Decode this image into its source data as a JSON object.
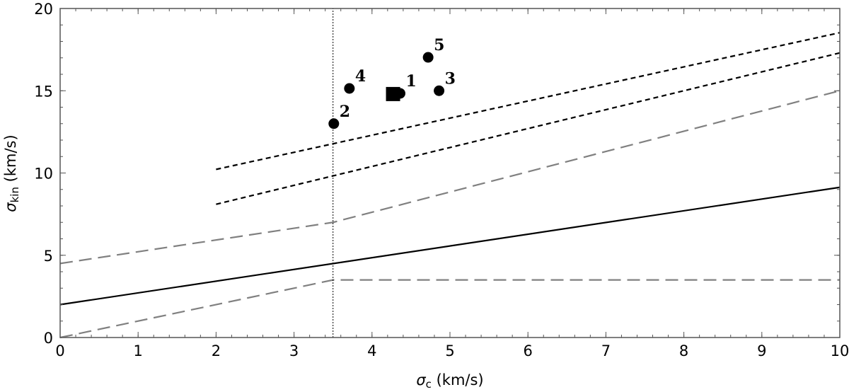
{
  "chart_data": {
    "type": "scatter",
    "xlabel": {
      "symbol": "σ",
      "sub": "c",
      "unit": " (km/s)"
    },
    "ylabel": {
      "symbol": "σ",
      "sub": "kin",
      "unit": " (km/s)"
    },
    "xlim": [
      0,
      10
    ],
    "ylim": [
      0,
      20
    ],
    "xticks": [
      0,
      1,
      2,
      3,
      4,
      5,
      6,
      7,
      8,
      9,
      10
    ],
    "yticks": [
      0,
      5,
      10,
      15,
      20
    ],
    "grid": false,
    "points": [
      {
        "label": "1",
        "x": 4.36,
        "y": 14.84,
        "marker": "circle"
      },
      {
        "label": "2",
        "x": 3.51,
        "y": 13.0,
        "marker": "circle"
      },
      {
        "label": "3",
        "x": 4.86,
        "y": 15.0,
        "marker": "circle"
      },
      {
        "label": "4",
        "x": 3.71,
        "y": 15.14,
        "marker": "circle"
      },
      {
        "label": "5",
        "x": 4.72,
        "y": 17.03,
        "marker": "circle"
      },
      {
        "label": "",
        "x": 4.27,
        "y": 14.8,
        "marker": "square"
      }
    ],
    "lines": [
      {
        "style": "solid",
        "color": "#000000",
        "points": [
          [
            0,
            2
          ],
          [
            10,
            9.13
          ]
        ]
      },
      {
        "style": "short-dash",
        "color": "#000000",
        "points": [
          [
            2,
            10.22
          ],
          [
            10,
            18.53
          ]
        ]
      },
      {
        "style": "short-dash",
        "color": "#000000",
        "points": [
          [
            2,
            8.1
          ],
          [
            10,
            17.3
          ]
        ]
      },
      {
        "style": "long-dash",
        "color": "#808080",
        "points": [
          [
            0,
            4.5
          ],
          [
            3.5,
            7
          ],
          [
            10,
            15
          ]
        ]
      },
      {
        "style": "long-dash",
        "color": "#808080",
        "points": [
          [
            0,
            0
          ],
          [
            3.5,
            3.5
          ],
          [
            10,
            3.5
          ]
        ]
      },
      {
        "style": "dotted",
        "color": "#000000",
        "points": [
          [
            3.5,
            0
          ],
          [
            3.5,
            20
          ]
        ]
      }
    ]
  }
}
